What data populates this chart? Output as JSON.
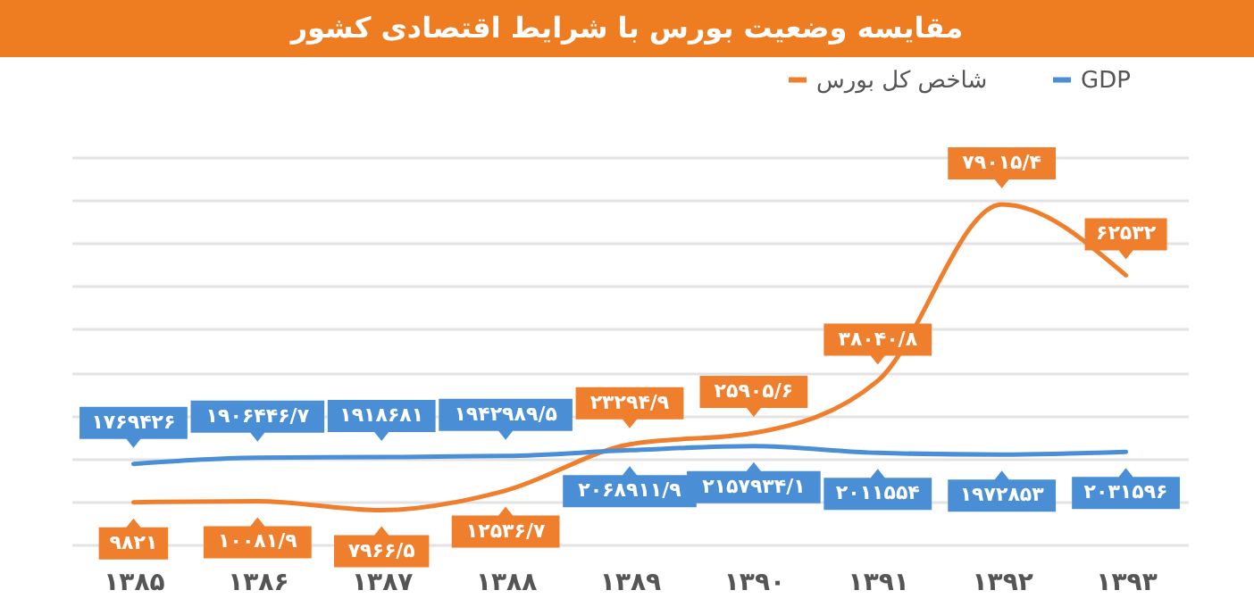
{
  "chart_data": {
    "type": "line",
    "title": "مقایسه وضعیت بورس با شرایط اقتصادی کشور",
    "categories": [
      "۱۳۸۵",
      "۱۳۸۶",
      "۱۳۸۷",
      "۱۳۸۸",
      "۱۳۸۹",
      "۱۳۹۰",
      "۱۳۹۱",
      "۱۳۹۲",
      "۱۳۹۳"
    ],
    "series": [
      {
        "name": "شاخص کل بورس",
        "color": "#f07f2d",
        "values": [
          9821,
          10081.9,
          7966.5,
          12536.7,
          23294.9,
          25905.6,
          38040.8,
          79015.4,
          62532
        ],
        "value_labels": [
          "۹۸۲۱",
          "۱۰۰۸۱/۹",
          "۷۹۶۶/۵",
          "۱۲۵۳۶/۷",
          "۲۳۲۹۴/۹",
          "۲۵۹۰۵/۶",
          "۳۸۰۴۰/۸",
          "۷۹۰۱۵/۴",
          "۶۲۵۳۲"
        ]
      },
      {
        "name": "GDP",
        "color": "#4a8fd6",
        "axis": "y2",
        "values": [
          1769426,
          1906446.7,
          1918681,
          1942989.5,
          2068911.9,
          2157934.1,
          2011554,
          1972853,
          2031596
        ],
        "value_labels": [
          "۱۷۶۹۴۲۶",
          "۱۹۰۶۴۴۶/۷",
          "۱۹۱۸۶۸۱",
          "۱۹۴۲۹۸۹/۵",
          "۲۰۶۸۹۱۱/۹",
          "۲۱۵۷۹۳۴/۱",
          "۲۰۱۱۵۵۴",
          "۱۹۷۲۸۵۳",
          "۲۰۳۱۵۹۶"
        ]
      }
    ],
    "ylim": [
      0,
      90000
    ],
    "yticks": [
      {
        "value": 0,
        "label": null
      },
      {
        "value": 10000,
        "label": null
      },
      {
        "value": 20000,
        "label": null
      },
      {
        "value": 30000,
        "label": null
      },
      {
        "value": 40000,
        "label": null
      },
      {
        "value": 50000,
        "label": null
      },
      {
        "value": 60000,
        "label": null
      },
      {
        "value": 70000,
        "label": null
      },
      {
        "value": 80000,
        "label": null
      },
      {
        "value": 90000,
        "label": null
      }
    ],
    "y2lim": [
      0,
      8500000
    ],
    "tick_labels": "x",
    "grid": "y",
    "legend": "top right",
    "marker": "none",
    "line_style": "solid"
  }
}
